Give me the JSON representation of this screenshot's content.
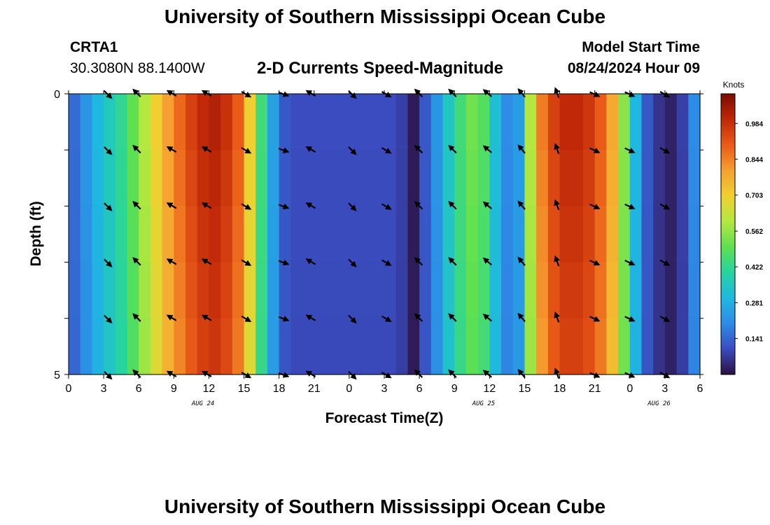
{
  "header": {
    "title": "University of Southern Mississippi Ocean Cube",
    "station_id": "CRTA1",
    "coordinates": "30.3080N  88.1400W",
    "plot_title": "2-D Currents Speed-Magnitude",
    "model_start_label": "Model Start Time",
    "model_start_value": "08/24/2024 Hour 09"
  },
  "footer": {
    "title": "University of Southern Mississippi Ocean Cube"
  },
  "colors": {
    "colormap": [
      "#2b1040",
      "#3a4cc0",
      "#2d8ce6",
      "#1fb8e0",
      "#26d4a0",
      "#5ee050",
      "#b4e840",
      "#f0d030",
      "#f5a030",
      "#ea5a18",
      "#c02808",
      "#7a0c00"
    ]
  },
  "chart_data": {
    "type": "heatmap",
    "title": "2-D Currents Speed-Magnitude",
    "xlabel": "Forecast Time(Z)",
    "ylabel": "Depth (ft)",
    "ylim": [
      0,
      5
    ],
    "y_ticks": [
      "0",
      "5"
    ],
    "x_tick_labels": [
      "0",
      "3",
      "6",
      "9",
      "12",
      "15",
      "18",
      "21",
      "0",
      "3",
      "6",
      "9",
      "12",
      "15",
      "18",
      "21",
      "0",
      "3",
      "6"
    ],
    "date_labels": [
      {
        "label": "AUG 24",
        "hour": 11.5
      },
      {
        "label": "AUG 25",
        "hour": 35.5
      },
      {
        "label": "AUG 26",
        "hour": 50.5
      }
    ],
    "hours_total": 54,
    "speed_knots_by_hour": [
      0.15,
      0.22,
      0.3,
      0.36,
      0.42,
      0.5,
      0.6,
      0.7,
      0.8,
      0.88,
      0.95,
      1.0,
      1.02,
      0.98,
      0.9,
      0.7,
      0.45,
      0.25,
      0.12,
      0.1,
      0.1,
      0.1,
      0.1,
      0.1,
      0.1,
      0.1,
      0.1,
      0.1,
      0.08,
      0.02,
      0.12,
      0.22,
      0.35,
      0.45,
      0.52,
      0.48,
      0.32,
      0.2,
      0.24,
      0.6,
      0.85,
      0.95,
      1.0,
      1.0,
      0.97,
      0.9,
      0.78,
      0.55,
      0.3,
      0.12,
      0.06,
      0.03,
      0.08,
      0.2,
      0.4
    ],
    "colorbar": {
      "label": "Knots",
      "range": [
        0,
        1.1
      ],
      "ticks": [
        "0.141",
        "0.281",
        "0.422",
        "0.562",
        "0.703",
        "0.844",
        "0.984"
      ]
    },
    "vector_rows_depth": [
      0,
      1,
      2,
      3,
      4,
      5
    ],
    "vector_columns": [
      {
        "hour": 3.3,
        "angle": 45
      },
      {
        "hour": 5.9,
        "angle": -135
      },
      {
        "hour": 8.9,
        "angle": -150
      },
      {
        "hour": 11.9,
        "angle": -150
      },
      {
        "hour": 15.1,
        "angle": 30
      },
      {
        "hour": 18.3,
        "angle": 20
      },
      {
        "hour": 20.8,
        "angle": -150
      },
      {
        "hour": 24.2,
        "angle": 45
      },
      {
        "hour": 27.1,
        "angle": 30
      },
      {
        "hour": 30.0,
        "angle": -135
      },
      {
        "hour": 32.9,
        "angle": -135
      },
      {
        "hour": 35.9,
        "angle": -140
      },
      {
        "hour": 38.8,
        "angle": -130
      },
      {
        "hour": 41.8,
        "angle": -110
      },
      {
        "hour": 44.9,
        "angle": 25
      },
      {
        "hour": 47.9,
        "angle": 25
      },
      {
        "hour": 50.9,
        "angle": 30
      }
    ]
  }
}
